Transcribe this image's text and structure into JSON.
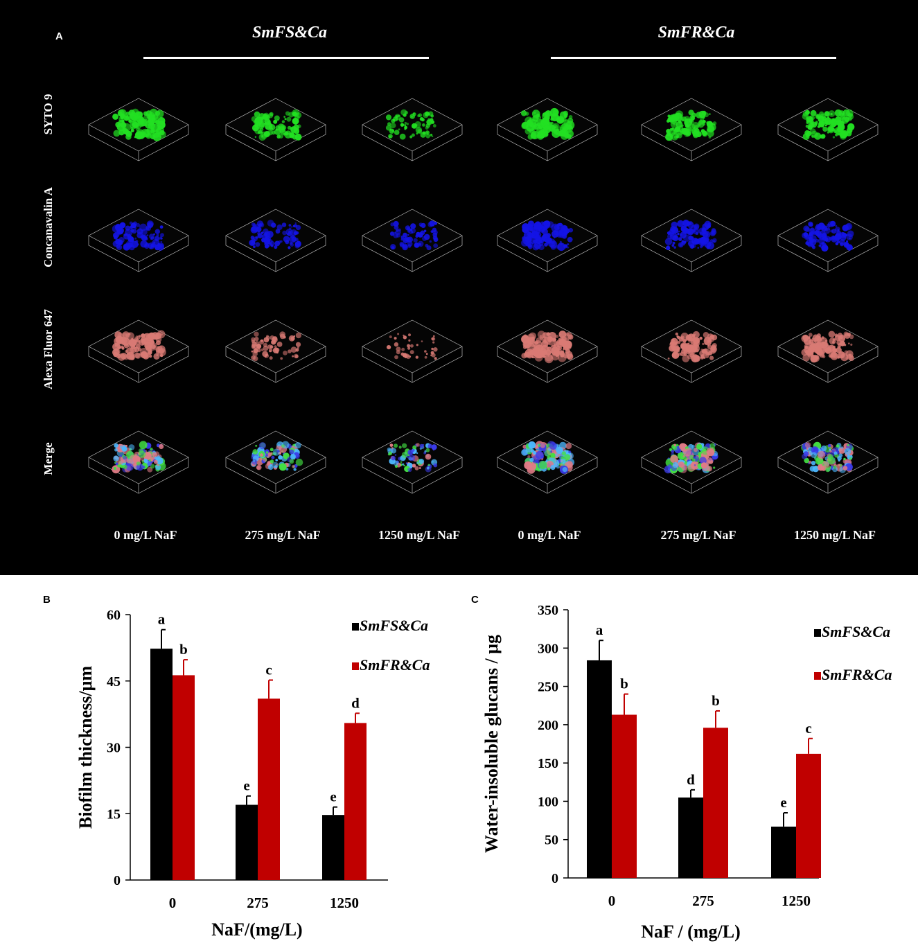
{
  "panel_a": {
    "letter": "A",
    "groups": [
      "SmFS&Ca",
      "SmFR&Ca"
    ],
    "rows": [
      "SYTO 9",
      "Concanavalin A",
      "Alexa Fluor 647",
      "Merge"
    ],
    "columns": [
      "0 mg/L NaF",
      "275 mg/L NaF",
      "1250 mg/L NaF",
      "0 mg/L NaF",
      "275 mg/L NaF",
      "1250 mg/L NaF"
    ],
    "row_colors": [
      "#22e022",
      "#1414e6",
      "#d97a74",
      "#7a6fc8"
    ],
    "density": [
      [
        0.9,
        0.75,
        0.45,
        0.95,
        0.85,
        0.7
      ],
      [
        0.7,
        0.6,
        0.35,
        0.85,
        0.7,
        0.65
      ],
      [
        0.85,
        0.35,
        0.12,
        0.95,
        0.8,
        0.75
      ],
      [
        0.9,
        0.7,
        0.45,
        0.95,
        0.85,
        0.8
      ]
    ]
  },
  "chart_data": [
    {
      "letter": "B",
      "type": "bar",
      "categories": [
        "0",
        "275",
        "1250"
      ],
      "series": [
        {
          "name": "SmFS&Ca",
          "color": "#000000",
          "values": [
            52.3,
            17.0,
            14.7
          ],
          "errors": [
            4.3,
            2.0,
            1.8
          ],
          "labels": [
            "a",
            "e",
            "e"
          ]
        },
        {
          "name": "SmFR&Ca",
          "color": "#c00000",
          "values": [
            46.3,
            41.0,
            35.5
          ],
          "errors": [
            3.5,
            4.2,
            2.2
          ],
          "labels": [
            "b",
            "c",
            "d"
          ]
        }
      ],
      "xlabel": "NaF/(mg/L)",
      "ylabel": "Biofilm thickness/μm",
      "ylim": [
        0,
        60
      ],
      "yticks": [
        0,
        15,
        30,
        45,
        60
      ],
      "legend": "top-right"
    },
    {
      "letter": "C",
      "type": "bar",
      "categories": [
        "0",
        "275",
        "1250"
      ],
      "series": [
        {
          "name": "SmFS&Ca",
          "color": "#000000",
          "values": [
            284,
            105,
            67
          ],
          "errors": [
            26,
            10,
            18
          ],
          "labels": [
            "a",
            "d",
            "e"
          ]
        },
        {
          "name": "SmFR&Ca",
          "color": "#c00000",
          "values": [
            213,
            196,
            162
          ],
          "errors": [
            27,
            22,
            20
          ],
          "labels": [
            "b",
            "b",
            "c"
          ]
        }
      ],
      "xlabel": "NaF / (mg/L)",
      "ylabel": "Water-insoluble glucans / μg",
      "ylim": [
        0,
        350
      ],
      "yticks": [
        0,
        50,
        100,
        150,
        200,
        250,
        300,
        350
      ],
      "legend": "top-right"
    }
  ]
}
